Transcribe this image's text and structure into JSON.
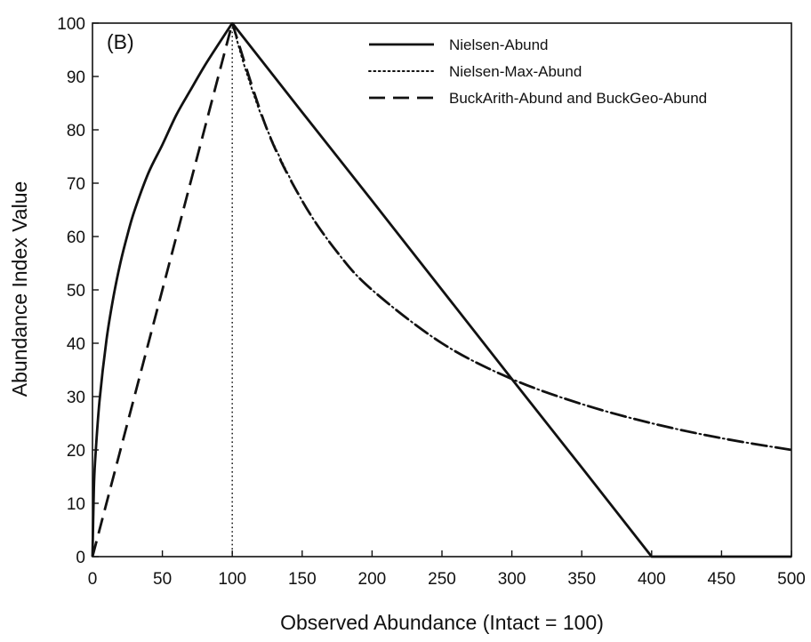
{
  "chart_data": {
    "type": "line",
    "panel_label": "(B)",
    "title": "",
    "xlabel": "Observed Abundance (Intact = 100)",
    "ylabel": "Abundance Index Value",
    "xlim": [
      0,
      500
    ],
    "ylim": [
      0,
      100
    ],
    "xticks": [
      0,
      50,
      100,
      150,
      200,
      250,
      300,
      350,
      400,
      450,
      500
    ],
    "yticks": [
      0,
      10,
      20,
      30,
      40,
      50,
      60,
      70,
      80,
      90,
      100
    ],
    "grid": false,
    "legend_position": "top-right",
    "reference_line": {
      "x": 100,
      "style": "dotted"
    },
    "series": [
      {
        "name": "Nielsen-Abund",
        "style": "solid",
        "x": [
          0,
          1,
          2,
          5,
          10,
          15,
          20,
          25,
          30,
          40,
          50,
          60,
          70,
          80,
          90,
          100,
          150,
          200,
          250,
          300,
          350,
          400,
          450,
          500
        ],
        "y": [
          0,
          12.8,
          18.4,
          29.1,
          40.6,
          48.7,
          55.1,
          60.3,
          64.8,
          71.9,
          77.2,
          82.8,
          87.4,
          91.9,
          96.0,
          100,
          83.3,
          66.7,
          50.0,
          33.3,
          16.7,
          0,
          0,
          0
        ]
      },
      {
        "name": "Nielsen-Max-Abund",
        "style": "dotted",
        "x": [
          100,
          110,
          125,
          150,
          175,
          200,
          250,
          300,
          350,
          400,
          450,
          500
        ],
        "y": [
          100,
          90.9,
          80.0,
          66.7,
          57.1,
          50.0,
          40.0,
          33.3,
          28.6,
          25.0,
          22.2,
          20.0
        ]
      },
      {
        "name": "BuckArith-Abund and BuckGeo-Abund",
        "style": "dashed",
        "x": [
          0,
          25,
          50,
          75,
          100,
          125,
          150,
          175,
          200,
          250,
          300,
          350,
          400,
          450,
          500
        ],
        "y": [
          0,
          25,
          50,
          75,
          100,
          80.0,
          66.7,
          57.1,
          50.0,
          40.0,
          33.3,
          28.6,
          25.0,
          22.2,
          20.0
        ]
      }
    ]
  }
}
